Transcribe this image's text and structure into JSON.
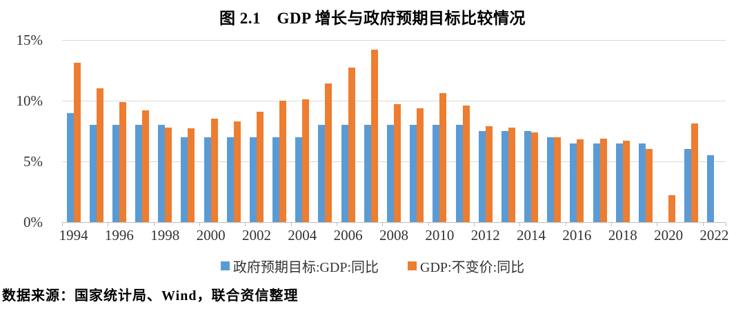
{
  "title": "图 2.1　GDP 增长与政府预期目标比较情况",
  "source_note": "数据来源：国家统计局、Wind，联合资信整理",
  "colors": {
    "target_series": "#5b9bd5",
    "actual_series": "#ed7d31",
    "gridline": "#d9d9d9",
    "axis": "#bfbfbf",
    "label_text": "#333333"
  },
  "chart_data": {
    "type": "bar",
    "title": "图 2.1　GDP 增长与政府预期目标比较情况",
    "categories": [
      1994,
      1995,
      1996,
      1997,
      1998,
      1999,
      2000,
      2001,
      2002,
      2003,
      2004,
      2005,
      2006,
      2007,
      2008,
      2009,
      2010,
      2011,
      2012,
      2013,
      2014,
      2015,
      2016,
      2017,
      2018,
      2019,
      2020,
      2021,
      2022
    ],
    "series": [
      {
        "name": "政府预期目标:GDP:同比",
        "color": "#5b9bd5",
        "values": [
          9,
          8,
          8,
          8,
          8,
          7,
          7,
          7,
          7,
          7,
          7,
          8,
          8,
          8,
          8,
          8,
          8,
          8,
          7.5,
          7.5,
          7.5,
          7,
          6.5,
          6.5,
          6.5,
          6.5,
          null,
          6,
          5.5
        ]
      },
      {
        "name": "GDP:不变价:同比",
        "color": "#ed7d31",
        "values": [
          13.1,
          11,
          9.9,
          9.2,
          7.8,
          7.7,
          8.5,
          8.3,
          9.1,
          10,
          10.1,
          11.4,
          12.7,
          14.2,
          9.7,
          9.4,
          10.6,
          9.6,
          7.9,
          7.8,
          7.4,
          7,
          6.8,
          6.9,
          6.7,
          6,
          2.2,
          8.1,
          null
        ]
      }
    ],
    "xlabel": "",
    "ylabel": "",
    "ylim": [
      0,
      15
    ],
    "ytick_values": [
      0,
      5,
      10,
      15
    ],
    "yticks": [
      "0%",
      "5%",
      "10%",
      "15%"
    ],
    "xtick_labels": [
      "1994",
      "1996",
      "1998",
      "2000",
      "2002",
      "2004",
      "2006",
      "2008",
      "2010",
      "2012",
      "2014",
      "2016",
      "2018",
      "2020",
      "2022"
    ],
    "grid": true,
    "legend_position": "bottom"
  }
}
